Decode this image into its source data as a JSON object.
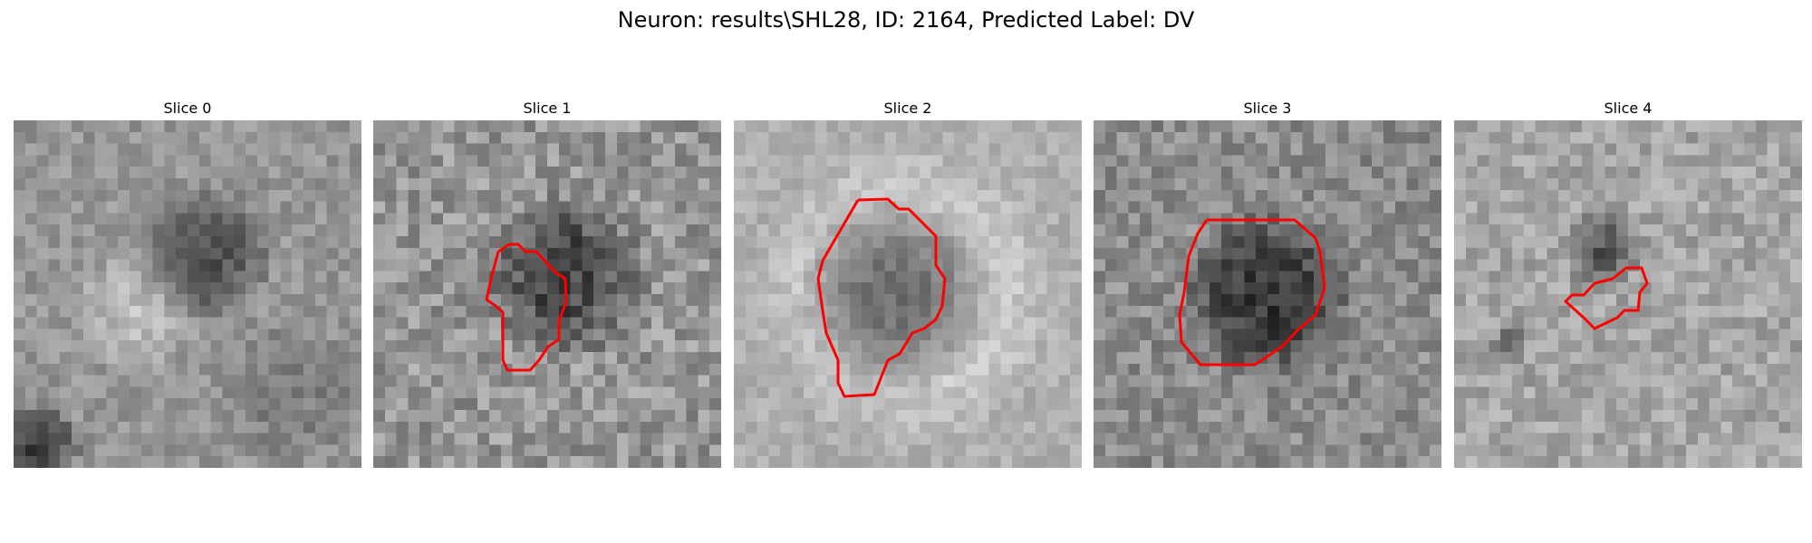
{
  "figure": {
    "title": "Neuron: results\\SHL28, ID: 2164, Predicted Label: DV"
  },
  "panels": [
    {
      "title": "Slice 0",
      "has_roi": false
    },
    {
      "title": "Slice 1",
      "has_roi": true
    },
    {
      "title": "Slice 2",
      "has_roi": true
    },
    {
      "title": "Slice 3",
      "has_roi": true
    },
    {
      "title": "Slice 4",
      "has_roi": true
    }
  ],
  "colors": {
    "roi_outline": "#ff0000",
    "image_colormap": "gray"
  }
}
